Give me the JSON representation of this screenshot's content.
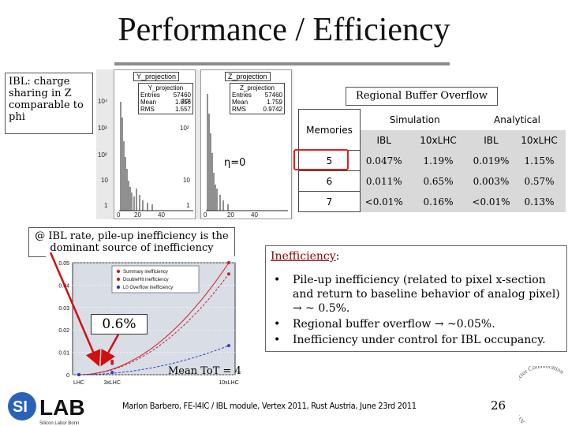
{
  "title": "Performance / Efficiency",
  "ibl_note": "IBL: charge sharing in Z comparable to phi",
  "histograms": {
    "y_panel": {
      "title": "Y_projection",
      "stats_title": "Y_projection",
      "entries_label": "Entries",
      "entries": "57460",
      "mean_label": "Mean",
      "mean": "1.856",
      "rms_label": "RMS",
      "rms": "1.557"
    },
    "z_panel": {
      "title": "Z_projection",
      "stats_title": "Z_projection",
      "entries_label": "Entries",
      "entries": "57460",
      "mean_label": "Mean",
      "mean": "1.759",
      "rms_label": "RMS",
      "rms": "0.9742"
    },
    "y_ticks": [
      "10⁴",
      "10³",
      "10²",
      "10",
      "1"
    ],
    "z_ticks": [
      "10³",
      "10²",
      "10",
      "1"
    ],
    "x_ticks_y": [
      "0",
      "20",
      "40"
    ],
    "x_ticks_z": [
      "0",
      "20",
      "40"
    ]
  },
  "eta_label": "η=0",
  "regional_buffer": {
    "title": "Regional Buffer Overflow",
    "memories_label": "Memories",
    "simulation_label": "Simulation",
    "analytical_label": "Analytical",
    "sub_headers": [
      "IBL",
      "10xLHC",
      "IBL",
      "10xLHC"
    ],
    "rows": [
      {
        "memories": "5",
        "sim_ibl": "0.047%",
        "sim_lhc": "1.19%",
        "ana_ibl": "0.019%",
        "ana_lhc": "1.15%"
      },
      {
        "memories": "6",
        "sim_ibl": "0.011%",
        "sim_lhc": "0.65%",
        "ana_ibl": "0.003%",
        "ana_lhc": "0.57%"
      },
      {
        "memories": "7",
        "sim_ibl": "<0.01%",
        "sim_lhc": "0.16%",
        "ana_ibl": "<0.01%",
        "ana_lhc": "0.13%"
      }
    ]
  },
  "pileup_note": "@ IBL rate, pile-up inefficiency is the dominant source of inefficiency",
  "ineff_plot": {
    "y_ticks": [
      "0.05",
      "0.04",
      "0.03",
      "0.02",
      "0.01",
      "0"
    ],
    "x_ticks": [
      "LHC",
      "3xLHC",
      "10xLHC"
    ],
    "legend": [
      "Summary inefficiency",
      "DoubleHit inefficiency",
      "L0 Overflow inefficiency"
    ],
    "colors": {
      "summary": "#d11c1c",
      "doublehit": "#c0223a",
      "overflow": "#2a3fc0"
    }
  },
  "chart_data": {
    "type": "line",
    "x": [
      "LHC",
      "3xLHC",
      "10xLHC"
    ],
    "series": [
      {
        "name": "Summary inefficiency",
        "values": [
          0.0,
          0.006,
          0.05
        ]
      },
      {
        "name": "DoubleHit inefficiency",
        "values": [
          0.0,
          0.005,
          0.045
        ]
      },
      {
        "name": "L0 Overflow inefficiency",
        "values": [
          0.0,
          0.001,
          0.013
        ]
      }
    ],
    "ylim": [
      0,
      0.05
    ]
  },
  "callout_value": "0.6%",
  "mean_tot": "Mean ToT = 4",
  "inefficiency": {
    "heading": "Inefficiency",
    "colon": ":",
    "bullets": [
      "Pile-up inefficiency (related to pixel x-section and return to baseline behavior of analog pixel) → ~ 0.5%.",
      "Regional buffer overflow → ~0.05%.",
      "Inefficiency under control for IBL occupancy."
    ]
  },
  "logo": {
    "left": "SI",
    "right": "LAB",
    "sub": "Silicon Labor Bonn"
  },
  "footer": "Marlon Barbero, FE-I4IC / IBL module, Vertex 2011, Rust Austria, June 23rd 2011",
  "page_number": "26",
  "seal_text": "ATLAS Pixel Detector Collaboration"
}
